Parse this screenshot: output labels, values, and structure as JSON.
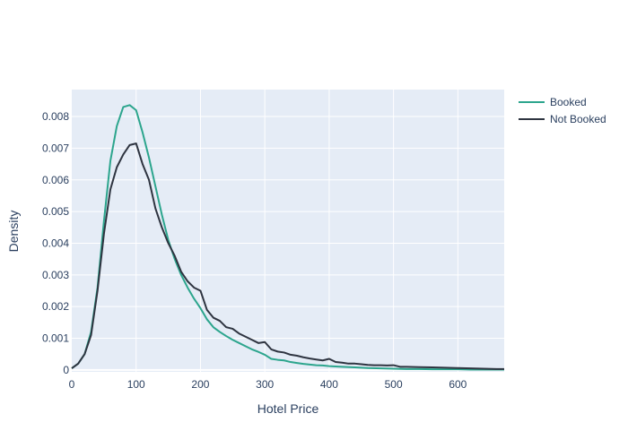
{
  "chart_data": {
    "type": "line",
    "xlabel": "Hotel Price",
    "ylabel": "Density",
    "xlim": [
      0,
      672
    ],
    "ylim": [
      -6e-05,
      0.00885
    ],
    "xticks": [
      0,
      100,
      200,
      300,
      400,
      500,
      600
    ],
    "xtick_labels": [
      "0",
      "100",
      "200",
      "300",
      "400",
      "500",
      "600"
    ],
    "yticks": [
      0,
      0.001,
      0.002,
      0.003,
      0.004,
      0.005,
      0.006,
      0.007,
      0.008
    ],
    "ytick_labels": [
      "0",
      "0.001",
      "0.002",
      "0.003",
      "0.004",
      "0.005",
      "0.006",
      "0.007",
      "0.008"
    ],
    "grid": true,
    "legend_position": "top-right",
    "background": "#e5ecf6",
    "series": [
      {
        "name": "Booked",
        "color": "#2ca58d",
        "x": [
          0,
          10,
          20,
          30,
          40,
          50,
          60,
          70,
          80,
          90,
          100,
          110,
          120,
          130,
          140,
          150,
          160,
          170,
          180,
          190,
          200,
          210,
          220,
          230,
          240,
          250,
          260,
          270,
          280,
          290,
          300,
          310,
          320,
          330,
          340,
          350,
          360,
          370,
          380,
          390,
          400,
          420,
          440,
          460,
          480,
          500,
          520,
          540,
          560,
          580,
          600,
          620,
          640,
          660,
          672
        ],
        "y": [
          5e-05,
          0.0002,
          0.0005,
          0.0012,
          0.0026,
          0.0047,
          0.0066,
          0.0077,
          0.0083,
          0.00836,
          0.0082,
          0.0075,
          0.0067,
          0.0058,
          0.0049,
          0.0041,
          0.0035,
          0.003,
          0.0026,
          0.00225,
          0.00195,
          0.0016,
          0.00135,
          0.0012,
          0.00107,
          0.00095,
          0.00085,
          0.00075,
          0.00065,
          0.00057,
          0.00048,
          0.00035,
          0.00032,
          0.0003,
          0.00025,
          0.00022,
          0.00019,
          0.00017,
          0.00015,
          0.00014,
          0.00012,
          0.0001,
          8e-05,
          6e-05,
          5e-05,
          4e-05,
          3e-05,
          3e-05,
          2e-05,
          2e-05,
          2e-05,
          1e-05,
          1e-05,
          1e-05,
          1e-05
        ]
      },
      {
        "name": "Not Booked",
        "color": "#2e3440",
        "x": [
          0,
          10,
          20,
          30,
          40,
          50,
          60,
          70,
          80,
          90,
          100,
          110,
          120,
          130,
          140,
          150,
          160,
          170,
          180,
          190,
          200,
          205,
          210,
          220,
          230,
          240,
          250,
          260,
          270,
          280,
          290,
          300,
          310,
          320,
          330,
          340,
          350,
          360,
          370,
          380,
          390,
          400,
          410,
          420,
          430,
          440,
          450,
          460,
          470,
          480,
          490,
          500,
          510,
          520,
          540,
          560,
          580,
          600,
          620,
          640,
          660,
          672
        ],
        "y": [
          5e-05,
          0.0002,
          0.0005,
          0.0011,
          0.0025,
          0.0043,
          0.0057,
          0.0064,
          0.0068,
          0.0071,
          0.00715,
          0.0065,
          0.006,
          0.0051,
          0.0045,
          0.004,
          0.0036,
          0.0031,
          0.0028,
          0.0026,
          0.0025,
          0.0022,
          0.0019,
          0.00165,
          0.00155,
          0.00135,
          0.0013,
          0.00115,
          0.00105,
          0.00095,
          0.00085,
          0.00088,
          0.00065,
          0.00058,
          0.00055,
          0.00048,
          0.00045,
          0.0004,
          0.00036,
          0.00033,
          0.0003,
          0.00035,
          0.00025,
          0.00023,
          0.0002,
          0.0002,
          0.00018,
          0.00016,
          0.00015,
          0.00015,
          0.00014,
          0.00015,
          0.0001,
          0.0001,
          9e-05,
          8e-05,
          7e-05,
          6e-05,
          5e-05,
          4e-05,
          3e-05,
          3e-05
        ]
      }
    ]
  }
}
